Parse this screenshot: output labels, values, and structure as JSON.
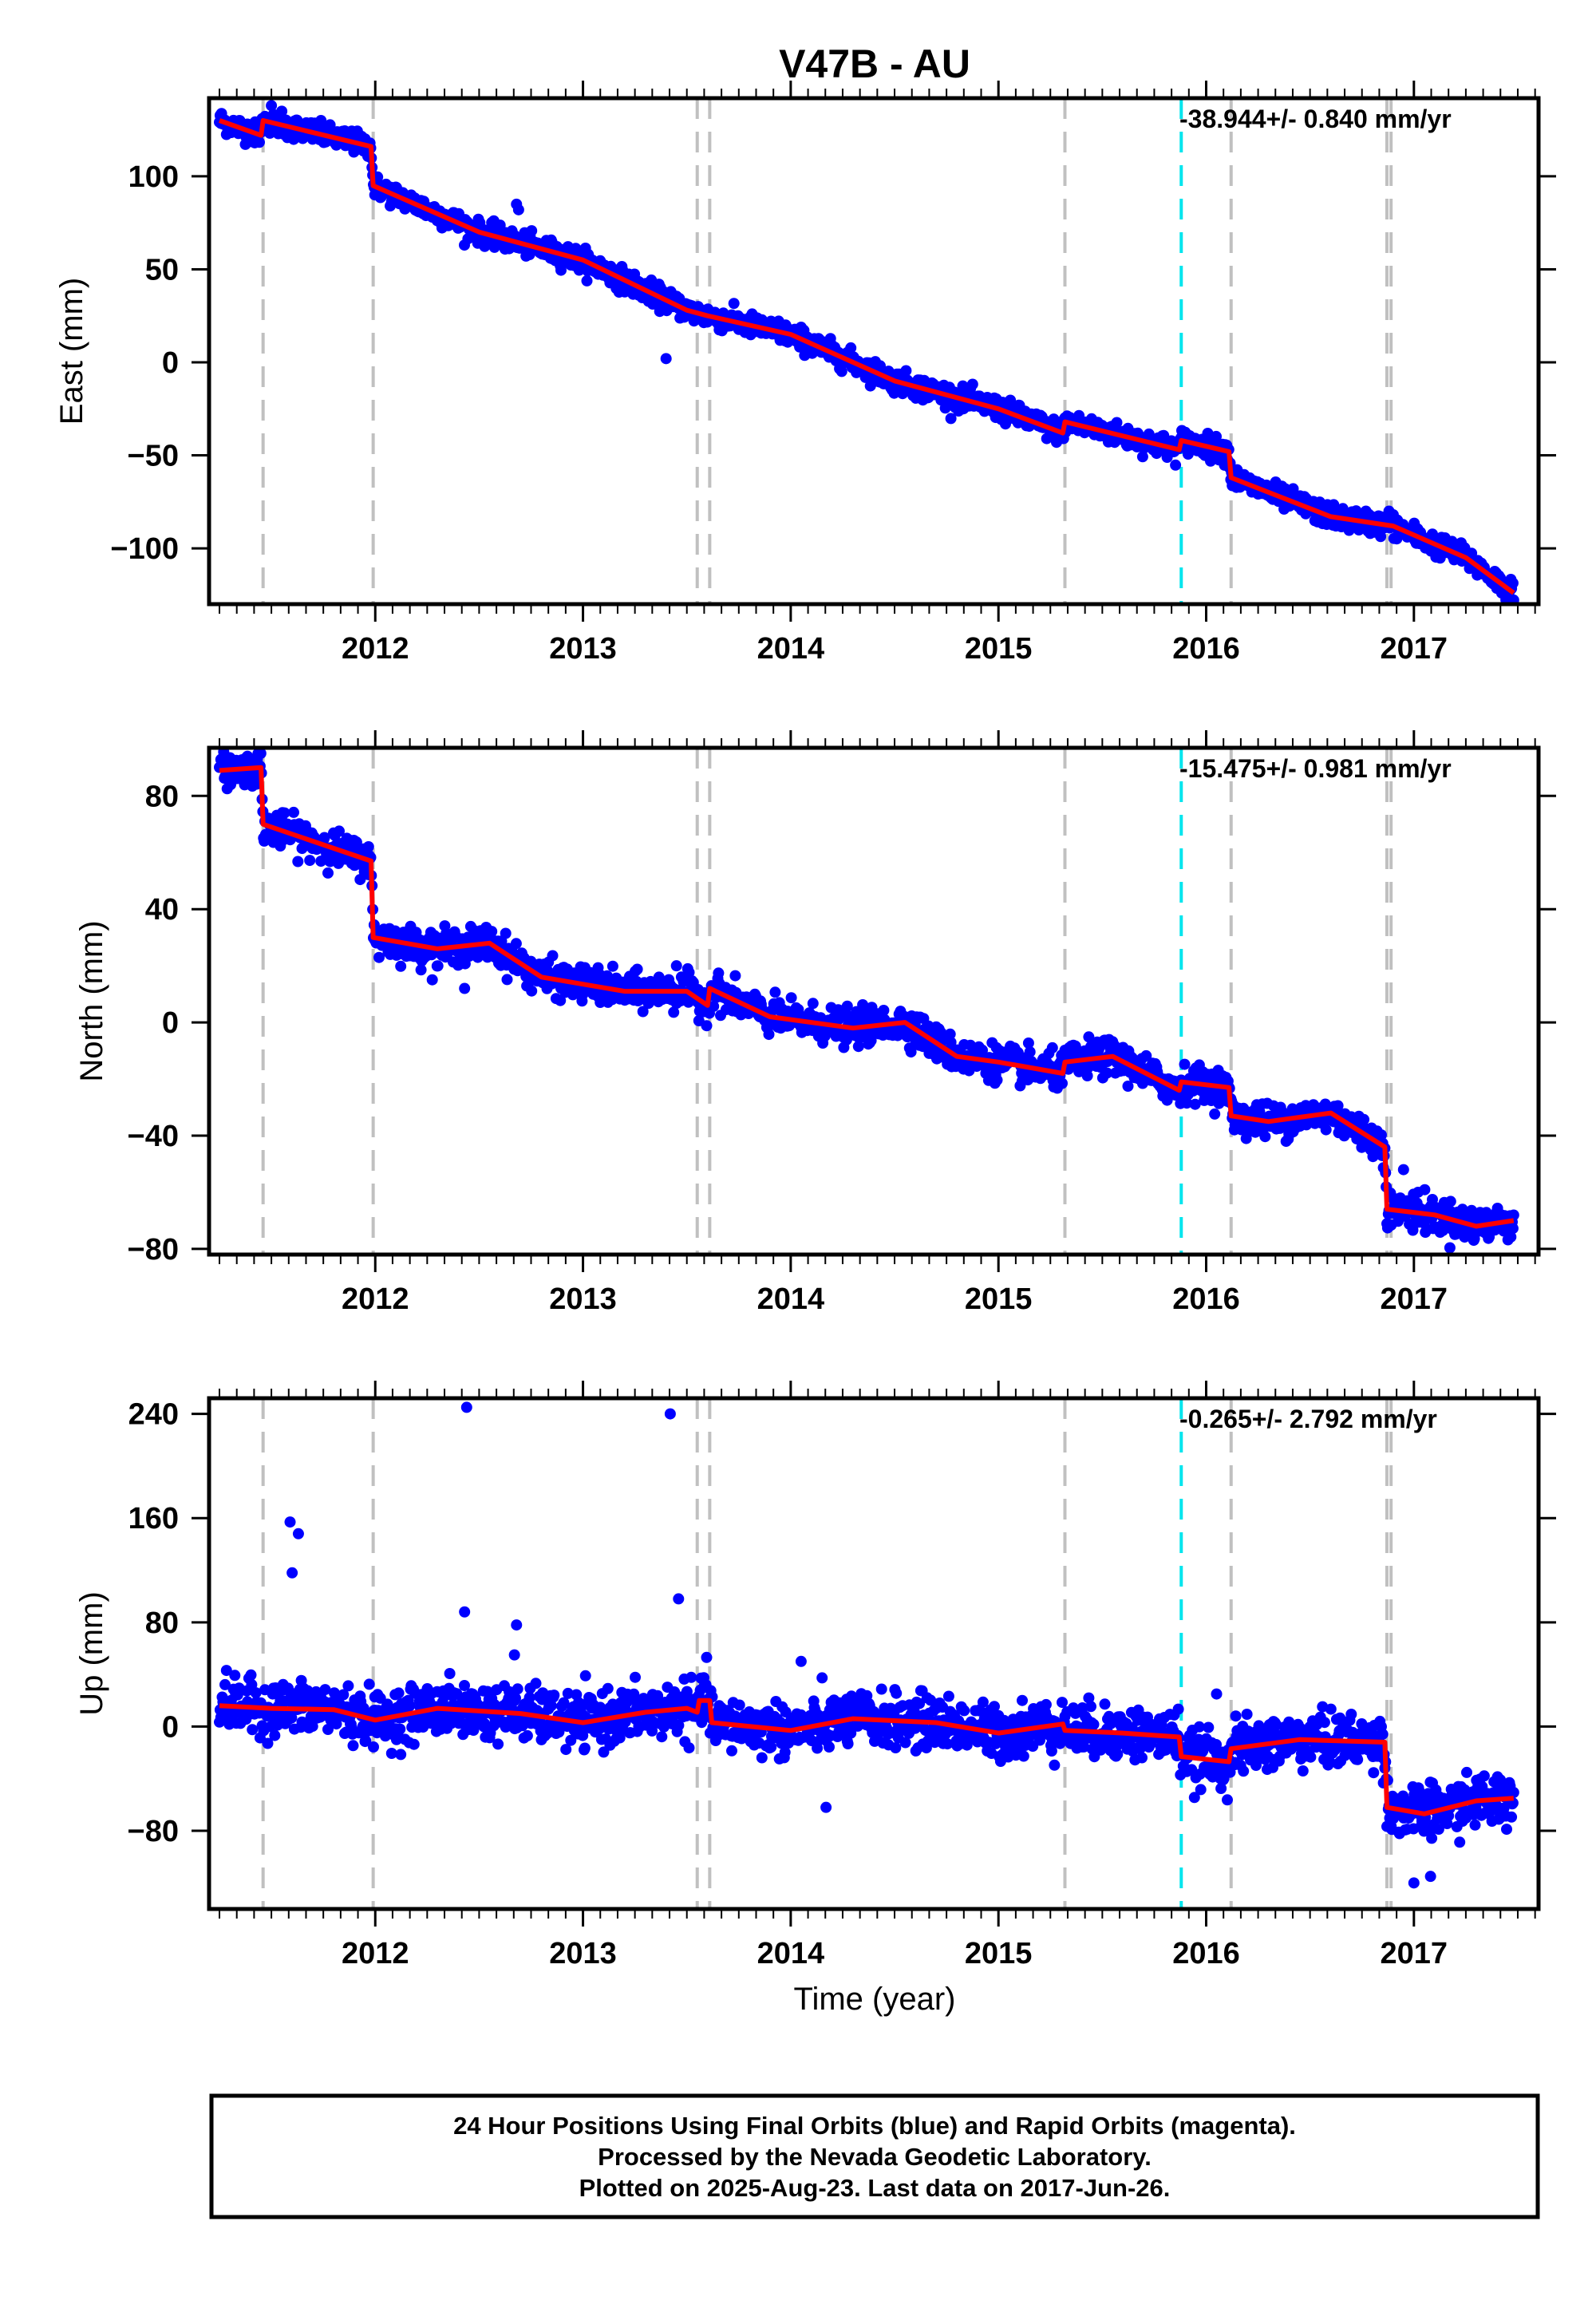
{
  "title": "V47B - AU",
  "xlabel": "Time (year)",
  "colors": {
    "final_points": "#0000ff",
    "model_line": "#ff0000",
    "equipment_change": "#c0c0c0",
    "earthquake": "#00e5ee"
  },
  "footer": {
    "line1": "24 Hour Positions Using Final Orbits (blue) and Rapid Orbits (magenta).",
    "line2": "Processed by the Nevada Geodetic Laboratory.",
    "line3": "Plotted on 2025-Aug-23. Last data on 2017-Jun-26."
  },
  "chart_data": [
    {
      "type": "scatter",
      "component": "east",
      "ylabel": "East (mm)",
      "rate_label": "-38.944+/- 0.840 mm/yr",
      "xlim": [
        2011.2,
        2017.6
      ],
      "ylim": [
        -130,
        142
      ],
      "x_ticks": [
        2012,
        2013,
        2014,
        2015,
        2016,
        2017
      ],
      "x_tick_labels": [
        "2012",
        "2013",
        "2014",
        "2015",
        "2016",
        "2017"
      ],
      "y_ticks": [
        100,
        50,
        0,
        -50,
        -100
      ],
      "y_tick_labels": [
        "100",
        "50",
        "0",
        "−50",
        "−100"
      ],
      "grid": false,
      "steps": [
        {
          "x": 2011.46,
          "dy": 10
        },
        {
          "x": 2011.99,
          "dy": -22
        },
        {
          "x": 2015.32,
          "dy": 6
        },
        {
          "x": 2015.88,
          "dy": 5
        },
        {
          "x": 2016.12,
          "dy": -15
        }
      ],
      "model": {
        "x": [
          2011.25,
          2011.45,
          2011.46,
          2011.98,
          2011.99,
          2012.5,
          2013.0,
          2013.5,
          2013.6,
          2014.0,
          2014.5,
          2015.0,
          2015.31,
          2015.32,
          2015.87,
          2015.88,
          2016.11,
          2016.12,
          2016.6,
          2016.9,
          2017.25,
          2017.48
        ],
        "y": [
          130,
          122,
          130,
          116,
          95,
          70,
          55,
          28,
          25,
          15,
          -10,
          -25,
          -38,
          -32,
          -47,
          -42,
          -48,
          -62,
          -83,
          -88,
          -105,
          -124
        ]
      },
      "outliers": {
        "x": [
          2011.42,
          2011.5,
          2011.55,
          2012.68,
          2012.69,
          2013.4,
          2011.88,
          2016.88
        ],
        "y": [
          118,
          138,
          135,
          85,
          82,
          2,
          120,
          -80
        ]
      },
      "scatter_points": {
        "count": 1850,
        "noise": 3,
        "note_free": true
      }
    },
    {
      "type": "scatter",
      "component": "north",
      "ylabel": "North (mm)",
      "rate_label": "-15.475+/- 0.981 mm/yr",
      "xlim": [
        2011.2,
        2017.6
      ],
      "ylim": [
        -82,
        97
      ],
      "x_ticks": [
        2012,
        2013,
        2014,
        2015,
        2016,
        2017
      ],
      "x_tick_labels": [
        "2012",
        "2013",
        "2014",
        "2015",
        "2016",
        "2017"
      ],
      "y_ticks": [
        80,
        40,
        0,
        -40,
        -80
      ],
      "y_tick_labels": [
        "80",
        "40",
        "0",
        "−40",
        "−80"
      ],
      "grid": false,
      "model": {
        "x": [
          2011.25,
          2011.45,
          2011.46,
          2011.98,
          2011.99,
          2012.3,
          2012.55,
          2012.8,
          2013.2,
          2013.5,
          2013.6,
          2013.61,
          2013.9,
          2014.3,
          2014.55,
          2014.8,
          2015.0,
          2015.31,
          2015.32,
          2015.55,
          2015.87,
          2015.88,
          2016.11,
          2016.12,
          2016.3,
          2016.6,
          2016.86,
          2016.87,
          2017.1,
          2017.3,
          2017.48
        ],
        "y": [
          89,
          90,
          70,
          57,
          30,
          26,
          28,
          16,
          11,
          11,
          6,
          12,
          2,
          -2,
          0,
          -12,
          -14,
          -18,
          -14,
          -12,
          -24,
          -21,
          -23,
          -33,
          -35,
          -32,
          -44,
          -66,
          -68,
          -72,
          -70
        ]
      },
      "outliers": {
        "x": [
          2012.43,
          2013.45,
          2016.95,
          2017.02
        ],
        "y": [
          12,
          20,
          -52,
          -60
        ]
      },
      "scatter_points": {
        "count": 1850,
        "noise": 3,
        "note_free": true
      }
    },
    {
      "type": "scatter",
      "component": "up",
      "ylabel": "Up (mm)",
      "rate_label": "-0.265+/- 2.792 mm/yr",
      "xlim": [
        2011.2,
        2017.6
      ],
      "ylim": [
        -140,
        252
      ],
      "x_ticks": [
        2012,
        2013,
        2014,
        2015,
        2016,
        2017
      ],
      "x_tick_labels": [
        "2012",
        "2013",
        "2014",
        "2015",
        "2016",
        "2017"
      ],
      "y_ticks": [
        240,
        160,
        80,
        0,
        -80
      ],
      "y_tick_labels": [
        "240",
        "160",
        "80",
        "0",
        "−80"
      ],
      "grid": false,
      "model": {
        "x": [
          2011.25,
          2011.5,
          2011.8,
          2012.0,
          2012.3,
          2012.7,
          2013.0,
          2013.3,
          2013.5,
          2013.55,
          2013.56,
          2013.61,
          2013.62,
          2014.0,
          2014.3,
          2014.7,
          2015.0,
          2015.31,
          2015.32,
          2015.6,
          2015.87,
          2015.88,
          2016.11,
          2016.12,
          2016.45,
          2016.86,
          2016.87,
          2017.05,
          2017.3,
          2017.48
        ],
        "y": [
          16,
          14,
          13,
          5,
          14,
          10,
          3,
          11,
          14,
          11,
          20,
          20,
          3,
          -3,
          6,
          3,
          -5,
          2,
          -3,
          -5,
          -8,
          -23,
          -27,
          -17,
          -10,
          -12,
          -62,
          -67,
          -57,
          -55
        ]
      },
      "outliers": {
        "x": [
          2012.44,
          2013.42,
          2011.59,
          2011.63,
          2011.6,
          2012.43,
          2013.46,
          2012.68,
          2012.67,
          2014.05,
          2014.17,
          2017.0,
          2017.08,
          2016.05
        ],
        "y": [
          245,
          240,
          157,
          148,
          118,
          88,
          98,
          78,
          55,
          50,
          -62,
          -120,
          -115,
          25
        ]
      },
      "scatter_points": {
        "count": 1850,
        "noise": 10,
        "note_free": true
      }
    }
  ],
  "event_lines": {
    "equipment": [
      2011.46,
      2011.99,
      2013.55,
      2013.61,
      2015.32,
      2016.12,
      2016.87,
      2016.89
    ],
    "earthquake": [
      2015.88
    ]
  }
}
